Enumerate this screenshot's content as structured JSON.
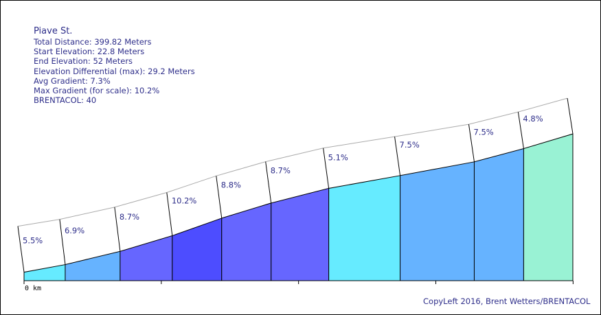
{
  "header": {
    "title": "Piave St.",
    "total_distance": "Total Distance: 399.82 Meters",
    "start_elevation": "Start Elevation: 22.8 Meters",
    "end_elevation": "End Elevation: 52 Meters",
    "elevation_differential": "Elevation Differential (max): 29.2 Meters",
    "avg_gradient": "Avg Gradient: 7.3%",
    "max_gradient": "Max Gradient (for scale): 10.2%",
    "brentacol": "BRENTACOL: 40"
  },
  "footer": {
    "copyleft": "CopyLeft 2016, Brent Wetters/BRENTACOL"
  },
  "chart_data": {
    "type": "area",
    "x_axis": {
      "ticks": [
        0,
        0.1,
        0.2,
        0.3,
        0.4
      ],
      "tick_labels": [
        "0 km"
      ]
    },
    "segments": [
      {
        "start_m": 0,
        "end_m": 30,
        "gradient_label": "5.5%",
        "color": "#66ebff"
      },
      {
        "start_m": 30,
        "end_m": 70,
        "gradient_label": "6.9%",
        "color": "#66b3ff"
      },
      {
        "start_m": 70,
        "end_m": 108,
        "gradient_label": "8.7%",
        "color": "#6666ff"
      },
      {
        "start_m": 108,
        "end_m": 144,
        "gradient_label": "10.2%",
        "color": "#4d4dff"
      },
      {
        "start_m": 144,
        "end_m": 180,
        "gradient_label": "8.8%",
        "color": "#6666ff"
      },
      {
        "start_m": 180,
        "end_m": 222,
        "gradient_label": "8.7%",
        "color": "#6666ff"
      },
      {
        "start_m": 222,
        "end_m": 274,
        "gradient_label": "5.1%",
        "color": "#66ebff"
      },
      {
        "start_m": 274,
        "end_m": 328,
        "gradient_label": "7.5%",
        "color": "#66b3ff"
      },
      {
        "start_m": 328,
        "end_m": 364,
        "gradient_label": "7.5%",
        "color": "#66b3ff"
      },
      {
        "start_m": 364,
        "end_m": 399.82,
        "gradient_label": "4.8%",
        "color": "#99f2d4"
      }
    ],
    "elevation_profile_m": [
      22.8,
      24.4,
      27.2,
      30.5,
      34.2,
      37.4,
      40.5,
      43.2,
      46.1,
      48.9,
      52
    ]
  }
}
